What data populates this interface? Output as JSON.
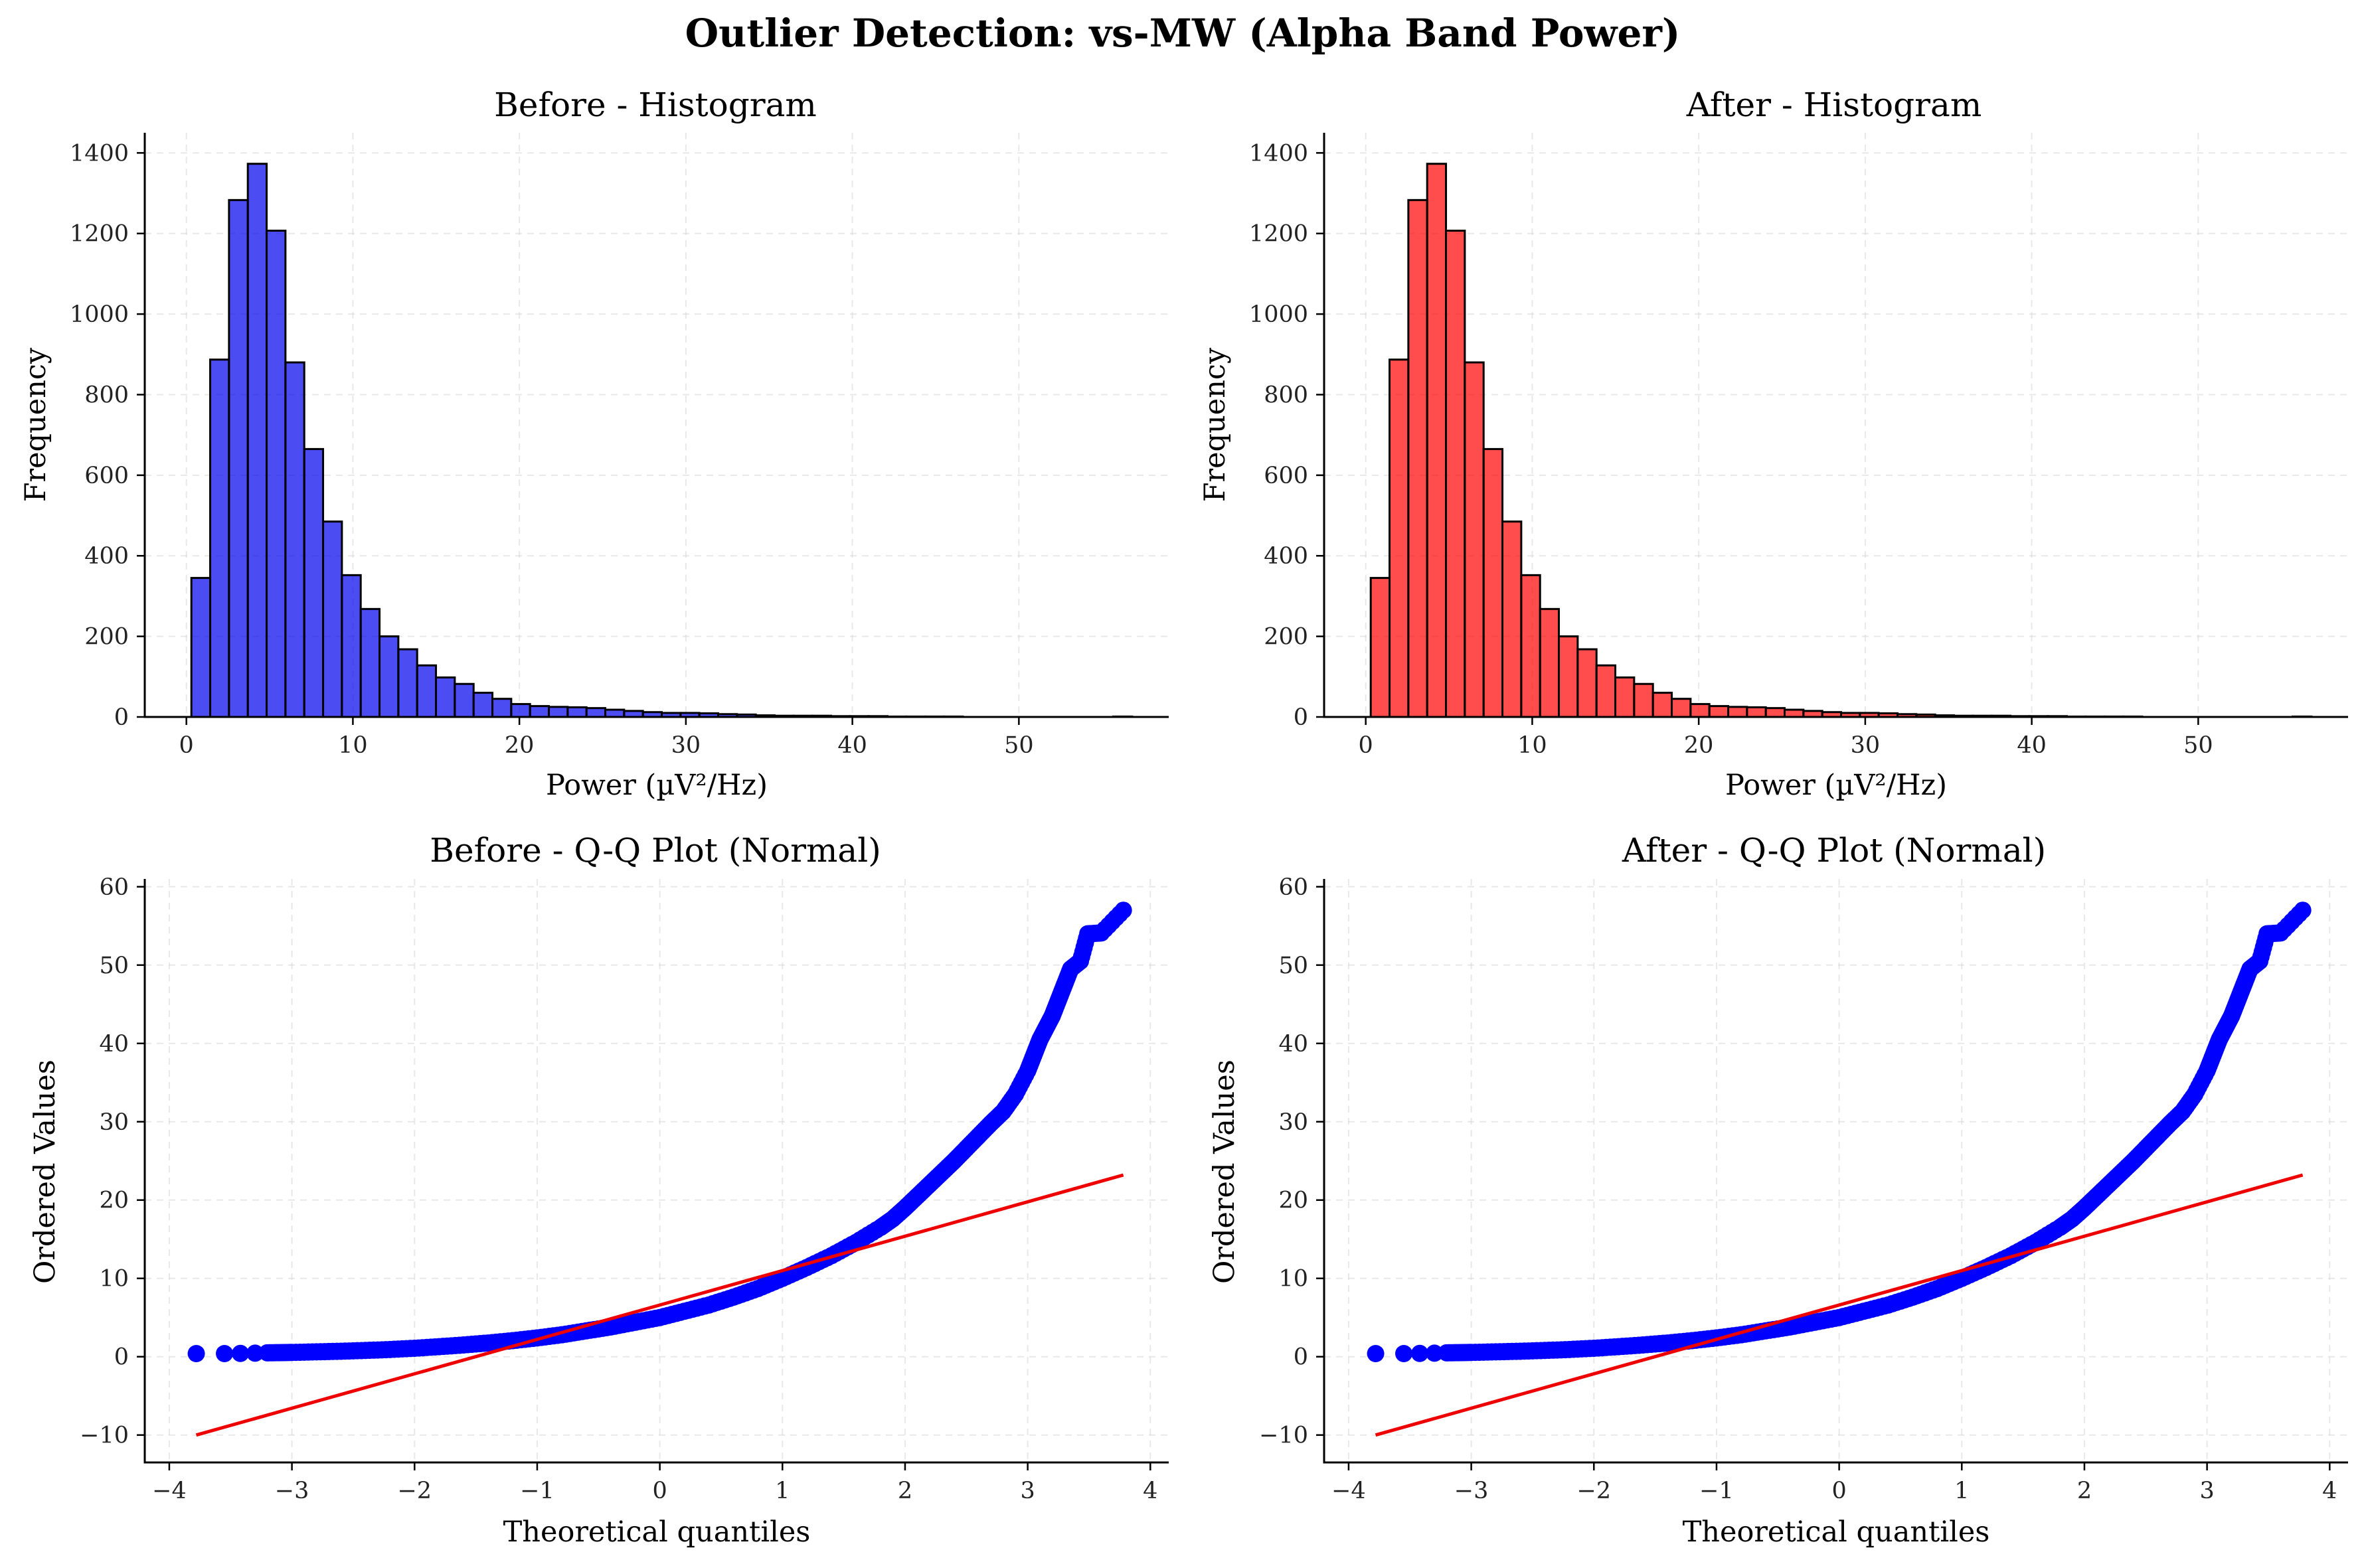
{
  "chart_data": [
    {
      "type": "bar",
      "title": "Before - Histogram",
      "xlabel": "Power (µV²/Hz)",
      "ylabel": "Frequency",
      "color": "#0000ee",
      "edge_color": "#000000",
      "xlim": [
        -2.5,
        59
      ],
      "ylim": [
        0,
        1450
      ],
      "xticks": [
        0,
        10,
        20,
        30,
        40,
        50
      ],
      "yticks": [
        0,
        200,
        400,
        600,
        800,
        1000,
        1200,
        1400
      ],
      "grid": true,
      "bin_start": 0.3,
      "bin_width": 1.13,
      "values": [
        345,
        887,
        1283,
        1373,
        1207,
        880,
        665,
        485,
        352,
        268,
        200,
        168,
        128,
        98,
        82,
        60,
        45,
        32,
        27,
        25,
        24,
        22,
        18,
        15,
        12,
        10,
        10,
        9,
        7,
        6,
        4,
        3,
        3,
        3,
        2,
        2,
        2,
        1,
        1,
        1,
        1,
        0,
        0,
        0,
        0,
        0,
        0,
        0,
        0,
        1
      ]
    },
    {
      "type": "bar",
      "title": "After - Histogram",
      "xlabel": "Power (µV²/Hz)",
      "ylabel": "Frequency",
      "color": "#ff0000",
      "edge_color": "#000000",
      "xlim": [
        -2.5,
        59
      ],
      "ylim": [
        0,
        1450
      ],
      "xticks": [
        0,
        10,
        20,
        30,
        40,
        50
      ],
      "yticks": [
        0,
        200,
        400,
        600,
        800,
        1000,
        1200,
        1400
      ],
      "grid": true,
      "bin_start": 0.3,
      "bin_width": 1.13,
      "values": [
        345,
        887,
        1283,
        1373,
        1207,
        880,
        665,
        485,
        352,
        268,
        200,
        168,
        128,
        98,
        82,
        60,
        45,
        32,
        27,
        25,
        24,
        22,
        18,
        15,
        12,
        10,
        10,
        9,
        7,
        6,
        4,
        3,
        3,
        3,
        2,
        2,
        2,
        1,
        1,
        1,
        1,
        0,
        0,
        0,
        0,
        0,
        0,
        0,
        0,
        1
      ]
    },
    {
      "type": "scatter",
      "title": "Before - Q-Q Plot (Normal)",
      "xlabel": "Theoretical quantiles",
      "ylabel": "Ordered Values",
      "point_color": "#0000ff",
      "line_color": "#ee0000",
      "xlim": [
        -4.2,
        4.15
      ],
      "ylim": [
        -13.5,
        61
      ],
      "xticks": [
        -4,
        -3,
        -2,
        -1,
        0,
        1,
        2,
        3,
        4
      ],
      "yticks": [
        -10,
        0,
        10,
        20,
        30,
        40,
        50,
        60
      ],
      "grid": true,
      "points": [
        [
          -3.78,
          0.4
        ],
        [
          -3.55,
          0.4
        ],
        [
          -3.42,
          0.42
        ],
        [
          -3.3,
          0.45
        ],
        [
          -3.2,
          0.5
        ],
        [
          -3.1,
          0.52
        ],
        [
          -3.0,
          0.55
        ],
        [
          -2.8,
          0.62
        ],
        [
          -2.6,
          0.7
        ],
        [
          -2.4,
          0.8
        ],
        [
          -2.2,
          0.92
        ],
        [
          -2.0,
          1.08
        ],
        [
          -1.8,
          1.28
        ],
        [
          -1.6,
          1.5
        ],
        [
          -1.4,
          1.75
        ],
        [
          -1.2,
          2.05
        ],
        [
          -1.0,
          2.4
        ],
        [
          -0.8,
          2.8
        ],
        [
          -0.6,
          3.3
        ],
        [
          -0.4,
          3.8
        ],
        [
          -0.2,
          4.4
        ],
        [
          0.0,
          5.0
        ],
        [
          0.2,
          5.8
        ],
        [
          0.4,
          6.6
        ],
        [
          0.6,
          7.6
        ],
        [
          0.8,
          8.7
        ],
        [
          1.0,
          10.0
        ],
        [
          1.2,
          11.4
        ],
        [
          1.4,
          12.9
        ],
        [
          1.6,
          14.6
        ],
        [
          1.8,
          16.5
        ],
        [
          1.9,
          17.6
        ],
        [
          2.0,
          19.0
        ],
        [
          2.1,
          20.5
        ],
        [
          2.2,
          22.0
        ],
        [
          2.3,
          23.5
        ],
        [
          2.4,
          25.0
        ],
        [
          2.5,
          26.6
        ],
        [
          2.6,
          28.2
        ],
        [
          2.7,
          29.8
        ],
        [
          2.8,
          31.3
        ],
        [
          2.9,
          33.5
        ],
        [
          3.0,
          36.5
        ],
        [
          3.05,
          38.5
        ],
        [
          3.1,
          40.5
        ],
        [
          3.15,
          42.0
        ],
        [
          3.2,
          43.5
        ],
        [
          3.25,
          45.5
        ],
        [
          3.3,
          47.5
        ],
        [
          3.35,
          49.5
        ],
        [
          3.43,
          50.5
        ],
        [
          3.49,
          54.0
        ],
        [
          3.6,
          54.1
        ],
        [
          3.78,
          57.0
        ]
      ],
      "fit_line": {
        "x": [
          -3.78,
          3.78
        ],
        "y": [
          -10.0,
          23.2
        ]
      }
    },
    {
      "type": "scatter",
      "title": "After - Q-Q Plot (Normal)",
      "xlabel": "Theoretical quantiles",
      "ylabel": "Ordered Values",
      "point_color": "#0000ff",
      "line_color": "#ee0000",
      "xlim": [
        -4.2,
        4.15
      ],
      "ylim": [
        -13.5,
        61
      ],
      "xticks": [
        -4,
        -3,
        -2,
        -1,
        0,
        1,
        2,
        3,
        4
      ],
      "yticks": [
        -10,
        0,
        10,
        20,
        30,
        40,
        50,
        60
      ],
      "grid": true,
      "points": [
        [
          -3.78,
          0.4
        ],
        [
          -3.55,
          0.4
        ],
        [
          -3.42,
          0.42
        ],
        [
          -3.3,
          0.45
        ],
        [
          -3.2,
          0.5
        ],
        [
          -3.1,
          0.52
        ],
        [
          -3.0,
          0.55
        ],
        [
          -2.8,
          0.62
        ],
        [
          -2.6,
          0.7
        ],
        [
          -2.4,
          0.8
        ],
        [
          -2.2,
          0.92
        ],
        [
          -2.0,
          1.08
        ],
        [
          -1.8,
          1.28
        ],
        [
          -1.6,
          1.5
        ],
        [
          -1.4,
          1.75
        ],
        [
          -1.2,
          2.05
        ],
        [
          -1.0,
          2.4
        ],
        [
          -0.8,
          2.8
        ],
        [
          -0.6,
          3.3
        ],
        [
          -0.4,
          3.8
        ],
        [
          -0.2,
          4.4
        ],
        [
          0.0,
          5.0
        ],
        [
          0.2,
          5.8
        ],
        [
          0.4,
          6.6
        ],
        [
          0.6,
          7.6
        ],
        [
          0.8,
          8.7
        ],
        [
          1.0,
          10.0
        ],
        [
          1.2,
          11.4
        ],
        [
          1.4,
          12.9
        ],
        [
          1.6,
          14.6
        ],
        [
          1.8,
          16.5
        ],
        [
          1.9,
          17.6
        ],
        [
          2.0,
          19.0
        ],
        [
          2.1,
          20.5
        ],
        [
          2.2,
          22.0
        ],
        [
          2.3,
          23.5
        ],
        [
          2.4,
          25.0
        ],
        [
          2.5,
          26.6
        ],
        [
          2.6,
          28.2
        ],
        [
          2.7,
          29.8
        ],
        [
          2.8,
          31.3
        ],
        [
          2.9,
          33.5
        ],
        [
          3.0,
          36.5
        ],
        [
          3.05,
          38.5
        ],
        [
          3.1,
          40.5
        ],
        [
          3.15,
          42.0
        ],
        [
          3.2,
          43.5
        ],
        [
          3.25,
          45.5
        ],
        [
          3.3,
          47.5
        ],
        [
          3.35,
          49.5
        ],
        [
          3.43,
          50.5
        ],
        [
          3.49,
          54.0
        ],
        [
          3.6,
          54.1
        ],
        [
          3.78,
          57.0
        ]
      ],
      "fit_line": {
        "x": [
          -3.78,
          3.78
        ],
        "y": [
          -10.0,
          23.2
        ]
      }
    }
  ],
  "figure": {
    "suptitle": "Outlier Detection: vs-MW (Alpha Band Power)"
  }
}
